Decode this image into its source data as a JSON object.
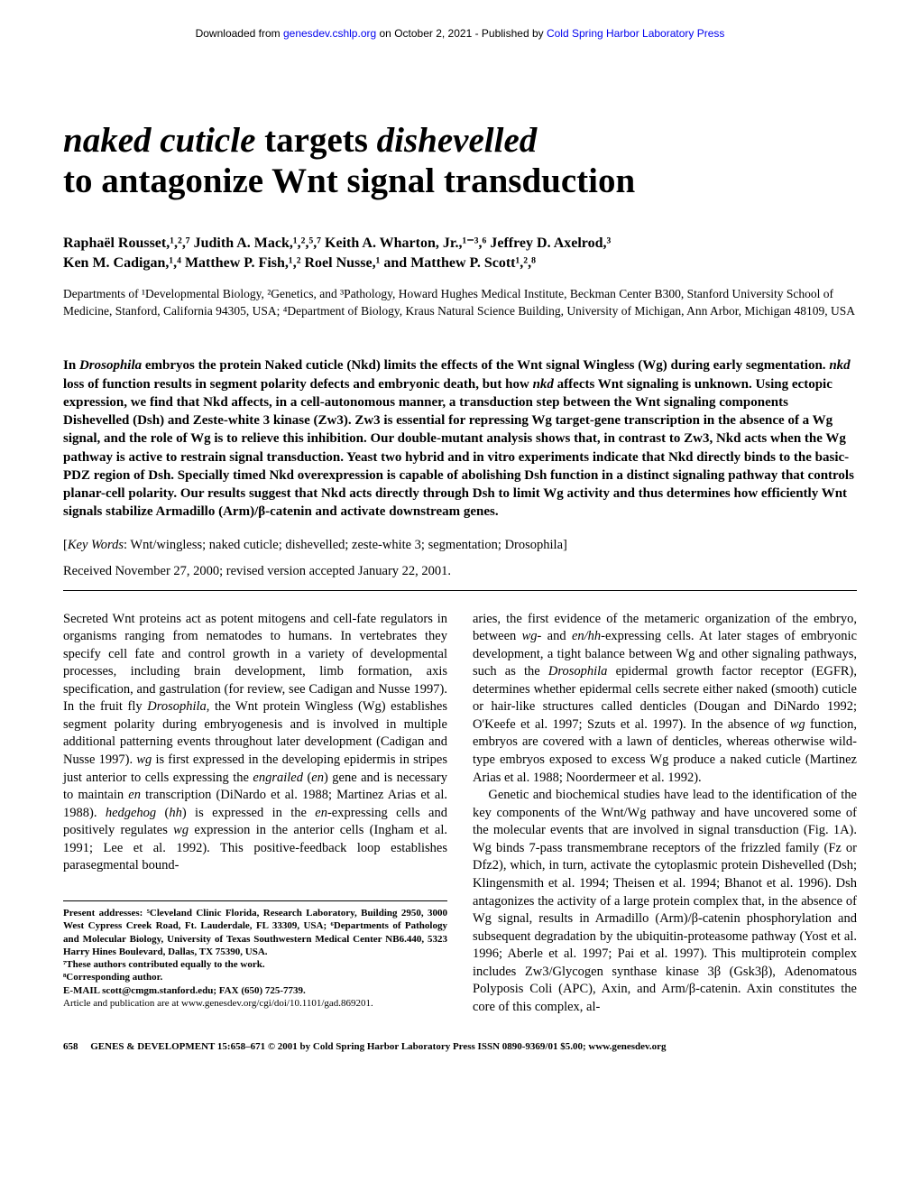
{
  "download": {
    "prefix": "Downloaded from ",
    "link1": "genesdev.cshlp.org",
    "mid": " on October 2, 2021 - Published by ",
    "link2": "Cold Spring Harbor Laboratory Press"
  },
  "title": {
    "part1": "naked cuticle",
    "part2": " targets ",
    "part3": "dishevelled",
    "part4": " to antagonize Wnt signal transduction"
  },
  "authors_line1": "Raphaël Rousset,¹,²,⁷ Judith A. Mack,¹,²,⁵,⁷ Keith A. Wharton, Jr.,¹⁻³,⁶ Jeffrey D. Axelrod,³",
  "authors_line2": "Ken M. Cadigan,¹,⁴ Matthew P. Fish,¹,² Roel Nusse,¹ and Matthew P. Scott¹,²,⁸",
  "affiliations": "Departments of ¹Developmental Biology, ²Genetics, and ³Pathology, Howard Hughes Medical Institute, Beckman Center B300, Stanford University School of Medicine, Stanford, California 94305, USA; ⁴Department of Biology, Kraus Natural Science Building, University of Michigan, Ann Arbor, Michigan 48109, USA",
  "abstract": {
    "p1a": "In ",
    "p1b": "Drosophila",
    "p1c": " embryos the protein Naked cuticle (Nkd) limits the effects of the Wnt signal Wingless (Wg) during early segmentation. ",
    "p1d": "nkd",
    "p1e": " loss of function results in segment polarity defects and embryonic death, but how ",
    "p1f": "nkd",
    "p1g": " affects Wnt signaling is unknown. Using ectopic expression, we find that Nkd affects, in a cell-autonomous manner, a transduction step between the Wnt signaling components Dishevelled (Dsh) and Zeste-white 3 kinase (Zw3). Zw3 is essential for repressing Wg target-gene transcription in the absence of a Wg signal, and the role of Wg is to relieve this inhibition. Our double-mutant analysis shows that, in contrast to Zw3, Nkd acts when the Wg pathway is active to restrain signal transduction. Yeast two hybrid and in vitro experiments indicate that Nkd directly binds to the basic-PDZ region of Dsh. Specially timed Nkd overexpression is capable of abolishing Dsh function in a distinct signaling pathway that controls planar-cell polarity. Our results suggest that Nkd acts directly through Dsh to limit Wg activity and thus determines how efficiently Wnt signals stabilize Armadillo (Arm)/β-catenin and activate downstream genes."
  },
  "keywords": {
    "label": "Key Words",
    "text": ": Wnt/wingless; naked cuticle; dishevelled; zeste-white 3; segmentation; ",
    "italic": "Drosophila"
  },
  "received": "Received November 27, 2000; revised version accepted January 22, 2001.",
  "body": {
    "left": {
      "p1a": "Secreted Wnt proteins act as potent mitogens and cell-fate regulators in organisms ranging from nematodes to humans. In vertebrates they specify cell fate and control growth in a variety of developmental processes, including brain development, limb formation, axis specification, and gastrulation (for review, see Cadigan and Nusse 1997). In the fruit fly ",
      "p1b": "Drosophila",
      "p1c": ", the Wnt protein Wingless (Wg) establishes segment polarity during embryogenesis and is involved in multiple additional patterning events throughout later development (Cadigan and Nusse 1997). ",
      "p1d": "wg",
      "p1e": " is first expressed in the developing epidermis in stripes just anterior to cells expressing the ",
      "p1f": "engrailed",
      "p1g": " (",
      "p1h": "en",
      "p1i": ") gene and is necessary to maintain ",
      "p1j": "en",
      "p1k": " transcription (DiNardo et al. 1988; Martinez Arias et al. 1988). ",
      "p1l": "hedgehog",
      "p1m": " (",
      "p1n": "hh",
      "p1o": ") is expressed in the ",
      "p1p": "en",
      "p1q": "-expressing cells and positively regulates ",
      "p1r": "wg",
      "p1s": " expression in the anterior cells (Ingham et al. 1991; Lee et al. 1992). This positive-feedback loop establishes parasegmental bound-"
    },
    "right": {
      "p1a": "aries, the first evidence of the metameric organization of the embryo, between ",
      "p1b": "wg",
      "p1c": "- and ",
      "p1d": "en/hh",
      "p1e": "-expressing cells. At later stages of embryonic development, a tight balance between Wg and other signaling pathways, such as the ",
      "p1f": "Drosophila",
      "p1g": " epidermal growth factor receptor (EGFR), determines whether epidermal cells secrete either naked (smooth) cuticle or hair-like structures called denticles (Dougan and DiNardo 1992; O'Keefe et al. 1997; Szuts et al. 1997). In the absence of ",
      "p1h": "wg",
      "p1i": " function, embryos are covered with a lawn of denticles, whereas otherwise wild-type embryos exposed to excess Wg produce a naked cuticle (Martinez Arias et al. 1988; Noordermeer et al. 1992).",
      "p2a": "Genetic and biochemical studies have lead to the identification of the key components of the Wnt/Wg pathway and have uncovered some of the molecular events that are involved in signal transduction (Fig. 1A). Wg binds 7-pass transmembrane receptors of the frizzled family (Fz or Dfz2), which, in turn, activate the cytoplasmic protein Dishevelled (Dsh; Klingensmith et al. 1994; Theisen et al. 1994; Bhanot et al. 1996). Dsh antagonizes the activity of a large protein complex that, in the absence of Wg signal, results in Armadillo (Arm)/β-catenin phosphorylation and subsequent degradation by the ubiquitin-proteasome pathway (Yost et al. 1996; Aberle et al. 1997; Pai et al. 1997). This multiprotein complex includes Zw3/Glycogen synthase kinase 3β (Gsk3β), Adenomatous Polyposis Coli (APC), Axin, and Arm/β-catenin. Axin constitutes the core of this complex, al-"
    }
  },
  "footnotes": {
    "f1": "Present addresses: ⁵Cleveland Clinic Florida, Research Laboratory, Building 2950, 3000 West Cypress Creek Road, Ft. Lauderdale, FL 33309, USA; ⁶Departments of Pathology and Molecular Biology, University of Texas Southwestern Medical Center NB6.440, 5323 Harry Hines Boulevard, Dallas, TX 75390, USA.",
    "f2": "⁷These authors contributed equally to the work.",
    "f3": "⁸Corresponding author.",
    "f4": "E-MAIL scott@cmgm.stanford.edu; FAX (650) 725-7739.",
    "f5": "Article and publication are at www.genesdev.org/cgi/doi/10.1101/gad.869201."
  },
  "footer": {
    "page": "658",
    "text": "GENES & DEVELOPMENT 15:658–671 © 2001 by Cold Spring Harbor Laboratory Press ISSN 0890-9369/01 $5.00; www.genesdev.org"
  }
}
